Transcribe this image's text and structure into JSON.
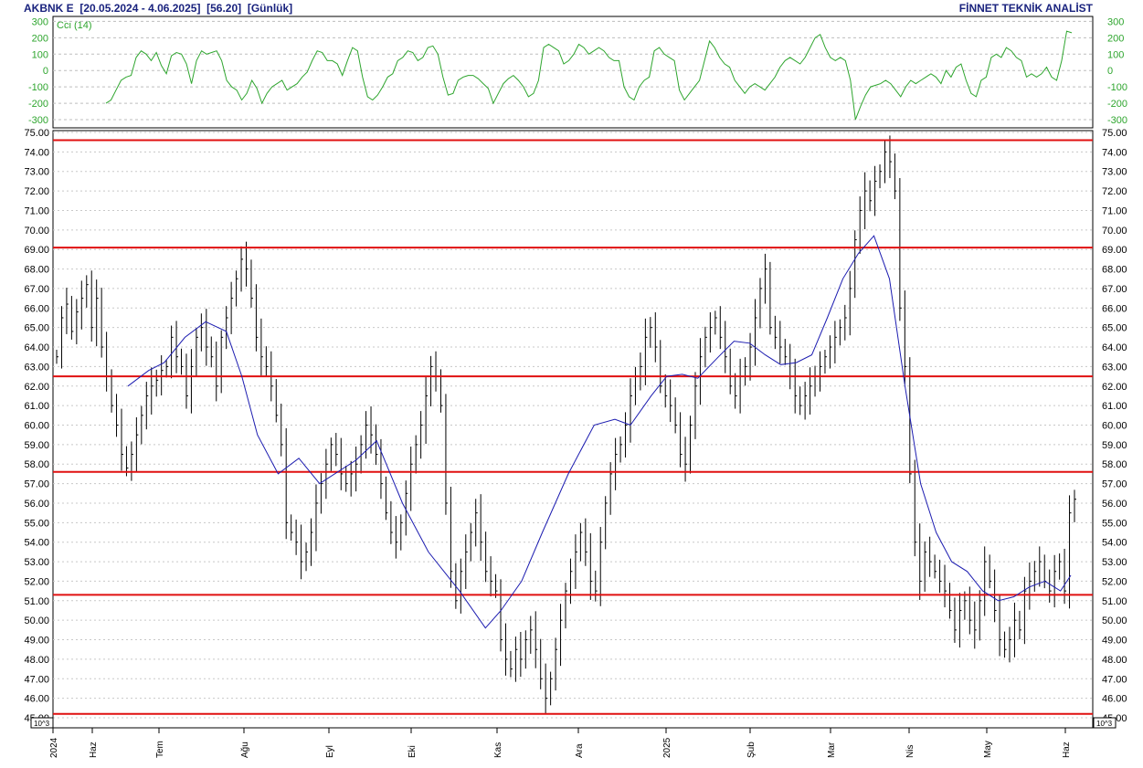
{
  "header": {
    "symbol": "AKBNK E",
    "range": "[20.05.2024 - 4.06.2025]",
    "last": "[56.20]",
    "period": "[Günlük]",
    "brand": "FİNNET TEKNİK ANALİST"
  },
  "chart_data": [
    {
      "type": "line",
      "title": "",
      "indicator_label": "Cci (14)",
      "color": "#2ea52e",
      "ylim": [
        -350,
        330
      ],
      "yticks": [
        300,
        200,
        100,
        0,
        -100,
        -200,
        -300
      ],
      "grid": true,
      "series": [
        {
          "name": "Cci (14)",
          "values": [
            -200,
            -180,
            -120,
            -60,
            -40,
            -30,
            80,
            120,
            100,
            60,
            110,
            30,
            -20,
            90,
            110,
            100,
            40,
            -80,
            60,
            120,
            100,
            110,
            120,
            60,
            -60,
            -100,
            -120,
            -180,
            -140,
            -60,
            -110,
            -200,
            -140,
            -100,
            -80,
            -60,
            -120,
            -100,
            -80,
            -40,
            -10,
            60,
            120,
            110,
            60,
            60,
            40,
            -30,
            60,
            140,
            120,
            -40,
            -160,
            -180,
            -150,
            -100,
            -40,
            -20,
            60,
            80,
            120,
            110,
            60,
            80,
            140,
            150,
            100,
            -40,
            -150,
            -140,
            -60,
            -40,
            -30,
            -30,
            -50,
            -80,
            -110,
            -200,
            -140,
            -80,
            -50,
            -30,
            -60,
            -100,
            -160,
            -140,
            -60,
            140,
            160,
            140,
            120,
            40,
            60,
            100,
            160,
            140,
            100,
            120,
            140,
            120,
            80,
            60,
            60,
            -100,
            -160,
            -180,
            -100,
            -60,
            -40,
            120,
            140,
            100,
            80,
            60,
            -120,
            -180,
            -140,
            -100,
            -60,
            60,
            180,
            140,
            80,
            40,
            20,
            -60,
            -100,
            -140,
            -100,
            -80,
            -100,
            -120,
            -80,
            -40,
            20,
            60,
            80,
            60,
            40,
            80,
            140,
            200,
            220,
            140,
            80,
            60,
            80,
            60,
            -60,
            -300,
            -220,
            -150,
            -100,
            -90,
            -80,
            -60,
            -80,
            -120,
            -160,
            -100,
            -60,
            -80,
            -60,
            -40,
            -20,
            -40,
            -80,
            0,
            -40,
            20,
            40,
            -60,
            -140,
            -160,
            -60,
            -40,
            80,
            100,
            80,
            140,
            120,
            80,
            60,
            -40,
            -20,
            -40,
            -20,
            20,
            -40,
            -60,
            60,
            240,
            230
          ]
        }
      ]
    },
    {
      "type": "bar",
      "subtype": "ohlc-range",
      "title": "",
      "ylim": [
        45,
        75
      ],
      "yticks": [
        "75.00",
        "74.00",
        "73.00",
        "72.00",
        "71.00",
        "70.00",
        "69.00",
        "68.00",
        "67.00",
        "66.00",
        "65.00",
        "64.00",
        "63.00",
        "62.00",
        "61.00",
        "60.00",
        "59.00",
        "58.00",
        "57.00",
        "56.00",
        "55.00",
        "54.00",
        "53.00",
        "52.00",
        "51.00",
        "50.00",
        "49.00",
        "48.00",
        "47.00",
        "46.00",
        "45.00"
      ],
      "scale_label": "10^3",
      "grid": true,
      "bar_color": "#000000",
      "ma_color": "#1c1cb0",
      "hline_color": "#e01010",
      "support_resistance": [
        74.6,
        69.1,
        62.5,
        57.6,
        51.3,
        45.2
      ],
      "closes": [
        63.5,
        65.5,
        66.2,
        64.8,
        65.8,
        66.5,
        67.2,
        65.0,
        66.5,
        64.0,
        62.5,
        61.0,
        60.0,
        58.5,
        57.8,
        58.5,
        59.5,
        60.5,
        61.5,
        62.0,
        62.3,
        62.8,
        63.0,
        64.5,
        63.5,
        63.0,
        61.5,
        63.0,
        64.5,
        65.0,
        64.0,
        63.5,
        62.0,
        64.5,
        65.5,
        66.5,
        67.5,
        68.5,
        68.0,
        66.5,
        64.5,
        63.5,
        63.0,
        62.0,
        60.5,
        59.0,
        55.0,
        54.5,
        54.0,
        53.0,
        53.5,
        54.5,
        56.0,
        57.0,
        58.0,
        59.0,
        58.5,
        57.5,
        57.0,
        57.5,
        58.0,
        59.0,
        60.0,
        59.5,
        58.5,
        57.0,
        55.5,
        54.5,
        54.0,
        55.0,
        56.5,
        58.0,
        59.0,
        60.0,
        61.5,
        63.0,
        62.5,
        61.0,
        56.0,
        52.5,
        51.0,
        52.5,
        53.5,
        54.5,
        55.5,
        54.0,
        52.5,
        52.0,
        51.5,
        49.0,
        48.0,
        47.5,
        48.5,
        48.0,
        49.0,
        49.5,
        48.5,
        47.0,
        46.0,
        47.0,
        48.5,
        50.0,
        51.5,
        52.5,
        53.5,
        54.5,
        53.5,
        52.0,
        51.5,
        54.0,
        56.0,
        57.5,
        58.5,
        59.0,
        60.0,
        61.5,
        62.5,
        63.0,
        64.5,
        65.0,
        64.0,
        62.0,
        61.5,
        61.0,
        60.0,
        58.5,
        58.0,
        60.0,
        62.0,
        63.5,
        64.5,
        65.0,
        65.5,
        64.5,
        63.5,
        62.0,
        61.5,
        62.5,
        63.0,
        64.0,
        65.5,
        67.0,
        68.0,
        65.0,
        64.5,
        64.0,
        63.5,
        62.5,
        61.5,
        61.0,
        61.5,
        62.0,
        62.5,
        63.0,
        63.5,
        64.0,
        64.5,
        65.0,
        65.5,
        67.0,
        69.5,
        71.0,
        72.0,
        71.5,
        72.5,
        73.0,
        74.0,
        73.5,
        72.0,
        66.0,
        63.0,
        57.5,
        54.0,
        52.0,
        53.5,
        53.0,
        52.5,
        52.0,
        51.5,
        50.5,
        49.5,
        50.5,
        51.0,
        50.0,
        49.5,
        51.0,
        53.0,
        52.0,
        50.5,
        49.0,
        48.5,
        49.0,
        50.0,
        49.5,
        51.5,
        52.0,
        52.5,
        53.0,
        52.0,
        51.5,
        52.5,
        53.0,
        51.5,
        55.5,
        56.2
      ],
      "ma_points": [
        [
          0.08,
          62.0
        ],
        [
          0.12,
          62.8
        ],
        [
          0.15,
          63.2
        ],
        [
          0.19,
          64.5
        ],
        [
          0.23,
          65.3
        ],
        [
          0.27,
          64.8
        ],
        [
          0.3,
          62.5
        ],
        [
          0.33,
          59.5
        ],
        [
          0.37,
          57.5
        ],
        [
          0.41,
          58.3
        ],
        [
          0.45,
          57.0
        ],
        [
          0.52,
          58.2
        ],
        [
          0.56,
          59.2
        ],
        [
          0.61,
          56.0
        ],
        [
          0.66,
          53.5
        ],
        [
          0.72,
          51.5
        ],
        [
          0.77,
          49.6
        ],
        [
          0.8,
          50.5
        ],
        [
          0.84,
          52.0
        ],
        [
          0.88,
          54.5
        ],
        [
          0.93,
          57.5
        ],
        [
          0.98,
          60.0
        ],
        [
          1.02,
          60.3
        ],
        [
          1.05,
          60.0
        ],
        [
          1.09,
          61.5
        ],
        [
          1.12,
          62.5
        ],
        [
          1.15,
          62.6
        ],
        [
          1.18,
          62.4
        ],
        [
          1.22,
          63.5
        ],
        [
          1.25,
          64.3
        ],
        [
          1.28,
          64.2
        ],
        [
          1.31,
          63.6
        ],
        [
          1.34,
          63.1
        ],
        [
          1.37,
          63.2
        ],
        [
          1.4,
          63.6
        ],
        [
          1.43,
          65.5
        ],
        [
          1.46,
          67.5
        ],
        [
          1.49,
          68.8
        ],
        [
          1.52,
          69.7
        ],
        [
          1.55,
          67.5
        ],
        [
          1.58,
          62.0
        ],
        [
          1.61,
          57.0
        ],
        [
          1.64,
          54.5
        ],
        [
          1.67,
          53.0
        ],
        [
          1.7,
          52.5
        ],
        [
          1.73,
          51.5
        ],
        [
          1.76,
          51.0
        ],
        [
          1.79,
          51.2
        ],
        [
          1.82,
          51.7
        ],
        [
          1.85,
          52.0
        ],
        [
          1.88,
          51.5
        ],
        [
          1.9,
          52.3
        ]
      ],
      "x_tick_labels": [
        "2024",
        "Haz",
        "Tem",
        "Ağu",
        "Eyl",
        "Eki",
        "Kas",
        "Ara",
        "2025",
        "Şub",
        "Mar",
        "Nis",
        "May",
        "Haz"
      ]
    }
  ]
}
